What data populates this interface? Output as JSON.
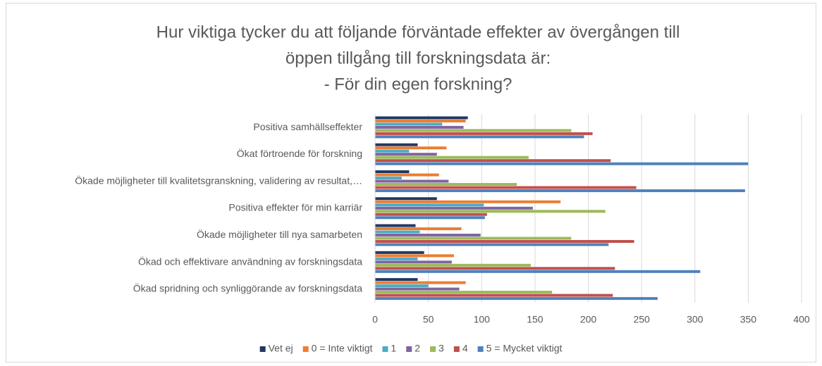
{
  "chart_data": {
    "type": "hbar",
    "title": [
      "Hur viktiga tycker du att följande förväntade effekter av övergången till",
      "öppen tillgång till forskningsdata är:",
      "- För din egen forskning?"
    ],
    "categories": [
      "Positiva samhällseffekter",
      "Ökat förtroende för forskning",
      "Ökade möjligheter till kvalitetsgranskning, validering av resultat,…",
      "Positiva effekter för min karriär",
      "Ökade möjligheter till nya samarbeten",
      "Ökad och effektivare användning av forskningsdata",
      "Ökad spridning och synliggörande av forskningsdata"
    ],
    "series": [
      {
        "name": "Vet ej",
        "color": "#203864",
        "values": [
          87,
          40,
          32,
          58,
          38,
          46,
          40
        ]
      },
      {
        "name": "0 = Inte viktigt",
        "color": "#ed7d31",
        "values": [
          85,
          67,
          60,
          174,
          81,
          74,
          85
        ]
      },
      {
        "name": "1",
        "color": "#4bacc6",
        "values": [
          63,
          32,
          25,
          102,
          42,
          40,
          50
        ]
      },
      {
        "name": "2",
        "color": "#8064a2",
        "values": [
          83,
          58,
          69,
          148,
          99,
          72,
          79
        ]
      },
      {
        "name": "3",
        "color": "#9bbb59",
        "values": [
          184,
          144,
          133,
          216,
          184,
          146,
          166
        ]
      },
      {
        "name": "4",
        "color": "#c0504d",
        "values": [
          204,
          221,
          245,
          105,
          243,
          225,
          223
        ]
      },
      {
        "name": "5 = Mycket viktigt",
        "color": "#4f81bd",
        "values": [
          196,
          350,
          347,
          103,
          219,
          305,
          265
        ]
      }
    ],
    "xlim": [
      0,
      400
    ],
    "xticks": [
      0,
      50,
      100,
      150,
      200,
      250,
      300,
      350,
      400
    ],
    "grid": true,
    "legend": "bottom"
  }
}
